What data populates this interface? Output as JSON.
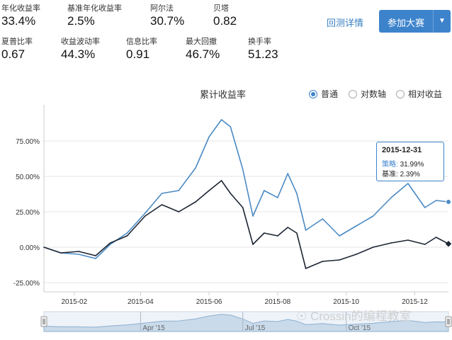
{
  "stats": [
    {
      "label": "年化收益率",
      "value": "33.4%"
    },
    {
      "label": "基准年化收益率",
      "value": "2.5%"
    },
    {
      "label": "阿尔法",
      "value": "30.7%"
    },
    {
      "label": "贝塔",
      "value": "0.82"
    },
    {
      "label": "夏普比率",
      "value": "0.67"
    },
    {
      "label": "收益波动率",
      "value": "44.3%"
    },
    {
      "label": "信息比率",
      "value": "0.91"
    },
    {
      "label": "最大回撤",
      "value": "46.7%"
    },
    {
      "label": "换手率",
      "value": "51.23"
    }
  ],
  "header": {
    "details_link": "回测详情",
    "join_button": "参加大赛",
    "dropdown_icon": "caret-down-icon"
  },
  "chart_header": {
    "title": "累计收益率",
    "options": [
      "普通",
      "对数轴",
      "相对收益"
    ],
    "selected": "普通"
  },
  "tooltip": {
    "date": "2015-12-31",
    "strategy_label": "策略:",
    "strategy_value": "31.99%",
    "benchmark_label": "基准:",
    "benchmark_value": "2.39%"
  },
  "navigator": {
    "labels": [
      "Apr '15",
      "Jul '15",
      "Oct '15"
    ]
  },
  "watermark": {
    "text": "Crossin的编程教室",
    "icon": "wechat-icon"
  },
  "colors": {
    "strategy": "#4a8ac4",
    "benchmark": "#1c2533",
    "accent": "#3d83cc"
  },
  "chart_data": {
    "type": "line",
    "yticks": [
      "75.00%",
      "50.00%",
      "25.00%",
      "0.00%",
      "-25.00%"
    ],
    "ytick_values": [
      75,
      50,
      25,
      0,
      -25
    ],
    "ylim": [
      -30,
      100
    ],
    "xticks": [
      "2015-02",
      "2015-04",
      "2015-06",
      "2015-08",
      "2015-10",
      "2015-12"
    ],
    "x": [
      "2015-01-05",
      "2015-01-20",
      "2015-02-05",
      "2015-02-20",
      "2015-03-05",
      "2015-03-20",
      "2015-04-05",
      "2015-04-20",
      "2015-05-05",
      "2015-05-20",
      "2015-06-01",
      "2015-06-12",
      "2015-06-20",
      "2015-07-01",
      "2015-07-10",
      "2015-07-20",
      "2015-08-01",
      "2015-08-10",
      "2015-08-18",
      "2015-08-26",
      "2015-09-10",
      "2015-09-25",
      "2015-10-10",
      "2015-10-25",
      "2015-11-10",
      "2015-11-25",
      "2015-12-10",
      "2015-12-20",
      "2015-12-31"
    ],
    "series": [
      {
        "name": "策略",
        "values": [
          0,
          -4,
          -5,
          -8,
          2,
          10,
          24,
          38,
          40,
          56,
          78,
          90,
          85,
          55,
          22,
          40,
          35,
          52,
          38,
          12,
          20,
          8,
          15,
          22,
          35,
          45,
          28,
          33,
          31.99
        ]
      },
      {
        "name": "基准",
        "values": [
          0,
          -4,
          -3,
          -6,
          3,
          8,
          22,
          30,
          25,
          32,
          40,
          47,
          38,
          28,
          2,
          10,
          8,
          14,
          10,
          -15,
          -10,
          -9,
          -5,
          0,
          3,
          5,
          2,
          7,
          2.39
        ]
      }
    ]
  }
}
